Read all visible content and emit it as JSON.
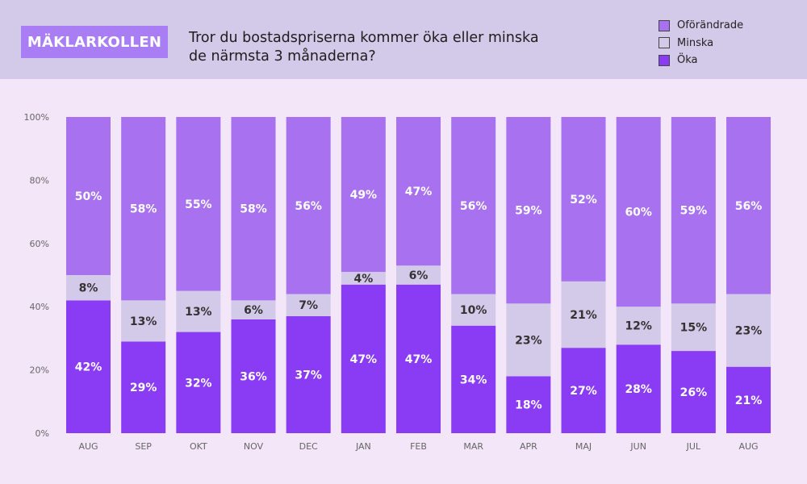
{
  "brand": "MÄKLARKOLLEN",
  "title_line1": "Tror du bostadspriserna kommer öka eller minska",
  "title_line2": "de närmsta 3 månaderna?",
  "colors": {
    "header_bg": "#d3cae9",
    "brand_bg": "#a97df3",
    "bg": "#f3e6f8",
    "oforandrade": "#a771ef",
    "minska": "#d3c9e8",
    "oka": "#8a3cf4"
  },
  "chart_data": {
    "type": "bar",
    "stacked": true,
    "categories": [
      "AUG",
      "SEP",
      "OKT",
      "NOV",
      "DEC",
      "JAN",
      "FEB",
      "MAR",
      "APR",
      "MAJ",
      "JUN",
      "JUL",
      "AUG"
    ],
    "series": [
      {
        "name": "Öka",
        "values": [
          42,
          29,
          32,
          36,
          37,
          47,
          47,
          34,
          18,
          27,
          28,
          26,
          21
        ]
      },
      {
        "name": "Minska",
        "values": [
          8,
          13,
          13,
          6,
          7,
          4,
          6,
          10,
          23,
          21,
          12,
          15,
          23
        ]
      },
      {
        "name": "Oförändrade",
        "values": [
          50,
          58,
          55,
          58,
          56,
          49,
          47,
          56,
          59,
          52,
          60,
          59,
          56
        ]
      }
    ],
    "legend": [
      "Oförändrade",
      "Minska",
      "Öka"
    ],
    "legend_position": "top-right",
    "ylim": [
      0,
      100
    ],
    "yticks": [
      "0%",
      "20%",
      "40%",
      "60%",
      "80%",
      "100%"
    ],
    "grid": false
  }
}
